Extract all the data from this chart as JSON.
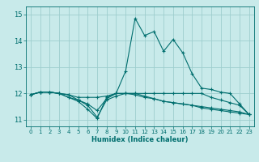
{
  "title": "",
  "xlabel": "Humidex (Indice chaleur)",
  "xlim": [
    -0.5,
    23.5
  ],
  "ylim": [
    10.75,
    15.3
  ],
  "xticks": [
    0,
    1,
    2,
    3,
    4,
    5,
    6,
    7,
    8,
    9,
    10,
    11,
    12,
    13,
    14,
    15,
    16,
    17,
    18,
    19,
    20,
    21,
    22,
    23
  ],
  "yticks": [
    11,
    12,
    13,
    14,
    15
  ],
  "bg_color": "#c8eaea",
  "grid_color": "#9dcece",
  "line_color": "#006e6e",
  "series": {
    "line1": [
      11.95,
      12.05,
      12.05,
      12.0,
      11.85,
      11.7,
      11.4,
      11.05,
      11.85,
      12.0,
      12.0,
      12.0,
      12.0,
      12.0,
      12.0,
      12.0,
      12.0,
      12.0,
      12.0,
      11.85,
      11.75,
      11.65,
      11.55,
      11.2
    ],
    "line2": [
      11.95,
      12.05,
      12.05,
      12.0,
      11.95,
      11.85,
      11.85,
      11.85,
      11.9,
      12.0,
      12.0,
      11.95,
      11.85,
      11.8,
      11.7,
      11.65,
      11.6,
      11.55,
      11.5,
      11.45,
      11.4,
      11.35,
      11.3,
      11.2
    ],
    "line3": [
      11.95,
      12.05,
      12.05,
      12.0,
      11.95,
      11.75,
      11.6,
      11.35,
      11.8,
      12.0,
      12.85,
      14.85,
      14.2,
      14.35,
      13.6,
      14.05,
      13.55,
      12.75,
      12.2,
      12.15,
      12.05,
      12.0,
      11.6,
      11.2
    ],
    "line4": [
      11.95,
      12.05,
      12.05,
      12.0,
      11.85,
      11.75,
      11.55,
      11.1,
      11.75,
      11.9,
      12.0,
      12.0,
      11.9,
      11.8,
      11.7,
      11.65,
      11.6,
      11.55,
      11.45,
      11.4,
      11.35,
      11.3,
      11.25,
      11.2
    ]
  }
}
